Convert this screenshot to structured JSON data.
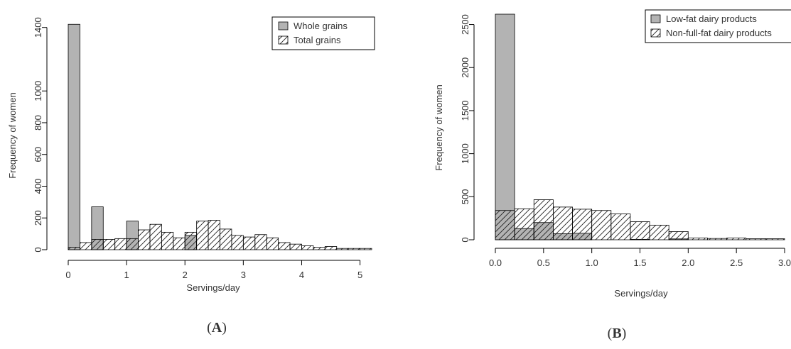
{
  "colors": {
    "solid_fill": "#b3b3b3",
    "hatch_stroke": "#222222",
    "axis": "#000000",
    "text": "#333333"
  },
  "chart_data": [
    {
      "id": "A",
      "type": "histogram",
      "panel_label": {
        "open": "(",
        "letter": "A",
        "close": ")"
      },
      "xlabel": "Servings/day",
      "ylabel": "Frequency of women",
      "xlim": [
        0,
        5.2
      ],
      "ylim": [
        0,
        1430
      ],
      "x_ticks": [
        0,
        1,
        2,
        3,
        4,
        5
      ],
      "x_tick_labels": [
        "0",
        "1",
        "2",
        "3",
        "4",
        "5"
      ],
      "y_ticks": [
        0,
        200,
        400,
        600,
        800,
        1000,
        1400
      ],
      "y_tick_labels": [
        "0",
        "200",
        "400",
        "600",
        "800",
        "1000",
        "1400"
      ],
      "legend_position": "top-right",
      "series": [
        {
          "name": "Whole grains",
          "style": "solid-gray",
          "bins": [
            {
              "x0": 0.0,
              "x1": 0.2,
              "value": 1420
            },
            {
              "x0": 0.4,
              "x1": 0.6,
              "value": 270
            },
            {
              "x0": 1.0,
              "x1": 1.2,
              "value": 180
            },
            {
              "x0": 2.0,
              "x1": 2.2,
              "value": 90
            }
          ]
        },
        {
          "name": "Total grains",
          "style": "hatched",
          "bins": [
            {
              "x0": 0.0,
              "x1": 0.2,
              "value": 15
            },
            {
              "x0": 0.2,
              "x1": 0.4,
              "value": 45
            },
            {
              "x0": 0.4,
              "x1": 0.6,
              "value": 65
            },
            {
              "x0": 0.6,
              "x1": 0.8,
              "value": 65
            },
            {
              "x0": 0.8,
              "x1": 1.0,
              "value": 70
            },
            {
              "x0": 1.0,
              "x1": 1.2,
              "value": 70
            },
            {
              "x0": 1.2,
              "x1": 1.4,
              "value": 125
            },
            {
              "x0": 1.4,
              "x1": 1.6,
              "value": 160
            },
            {
              "x0": 1.6,
              "x1": 1.8,
              "value": 110
            },
            {
              "x0": 1.8,
              "x1": 2.0,
              "value": 75
            },
            {
              "x0": 2.0,
              "x1": 2.2,
              "value": 110
            },
            {
              "x0": 2.2,
              "x1": 2.4,
              "value": 180
            },
            {
              "x0": 2.4,
              "x1": 2.6,
              "value": 185
            },
            {
              "x0": 2.6,
              "x1": 2.8,
              "value": 130
            },
            {
              "x0": 2.8,
              "x1": 3.0,
              "value": 90
            },
            {
              "x0": 3.0,
              "x1": 3.2,
              "value": 80
            },
            {
              "x0": 3.2,
              "x1": 3.4,
              "value": 95
            },
            {
              "x0": 3.4,
              "x1": 3.6,
              "value": 75
            },
            {
              "x0": 3.6,
              "x1": 3.8,
              "value": 45
            },
            {
              "x0": 3.8,
              "x1": 4.0,
              "value": 35
            },
            {
              "x0": 4.0,
              "x1": 4.2,
              "value": 25
            },
            {
              "x0": 4.2,
              "x1": 4.4,
              "value": 15
            },
            {
              "x0": 4.4,
              "x1": 4.6,
              "value": 20
            },
            {
              "x0": 4.6,
              "x1": 4.8,
              "value": 8
            },
            {
              "x0": 4.8,
              "x1": 5.0,
              "value": 8
            },
            {
              "x0": 5.0,
              "x1": 5.2,
              "value": 8
            }
          ]
        }
      ]
    },
    {
      "id": "B",
      "type": "histogram",
      "panel_label": {
        "open": "(",
        "letter": "B",
        "close": ")"
      },
      "xlabel": "Servings/day",
      "ylabel": "Frequency of women",
      "xlim": [
        0,
        3.0
      ],
      "ylim": [
        0,
        2620
      ],
      "x_ticks": [
        0.0,
        0.5,
        1.0,
        1.5,
        2.0,
        2.5,
        3.0
      ],
      "x_tick_labels": [
        "0.0",
        "0.5",
        "1.0",
        "1.5",
        "2.0",
        "2.5",
        "3.0"
      ],
      "y_ticks": [
        0,
        500,
        1000,
        1500,
        2000,
        2500
      ],
      "y_tick_labels": [
        "0",
        "500",
        "1000",
        "1500",
        "2000",
        "2500"
      ],
      "legend_position": "top-right",
      "series": [
        {
          "name": "Low-fat dairy products",
          "style": "solid-gray",
          "bins": [
            {
              "x0": 0.0,
              "x1": 0.2,
              "value": 2620
            },
            {
              "x0": 0.2,
              "x1": 0.4,
              "value": 130
            },
            {
              "x0": 0.4,
              "x1": 0.6,
              "value": 200
            },
            {
              "x0": 0.6,
              "x1": 0.8,
              "value": 70
            },
            {
              "x0": 0.8,
              "x1": 1.0,
              "value": 75
            },
            {
              "x0": 1.4,
              "x1": 1.6,
              "value": 5
            },
            {
              "x0": 1.8,
              "x1": 2.0,
              "value": 10
            }
          ]
        },
        {
          "name": "Non-full-fat dairy products",
          "style": "hatched",
          "bins": [
            {
              "x0": 0.0,
              "x1": 0.2,
              "value": 340
            },
            {
              "x0": 0.2,
              "x1": 0.4,
              "value": 360
            },
            {
              "x0": 0.4,
              "x1": 0.6,
              "value": 465
            },
            {
              "x0": 0.6,
              "x1": 0.8,
              "value": 380
            },
            {
              "x0": 0.8,
              "x1": 1.0,
              "value": 355
            },
            {
              "x0": 1.0,
              "x1": 1.2,
              "value": 340
            },
            {
              "x0": 1.2,
              "x1": 1.4,
              "value": 300
            },
            {
              "x0": 1.4,
              "x1": 1.6,
              "value": 210
            },
            {
              "x0": 1.6,
              "x1": 1.8,
              "value": 170
            },
            {
              "x0": 1.8,
              "x1": 2.0,
              "value": 95
            },
            {
              "x0": 2.0,
              "x1": 2.2,
              "value": 20
            },
            {
              "x0": 2.2,
              "x1": 2.4,
              "value": 15
            },
            {
              "x0": 2.4,
              "x1": 2.6,
              "value": 20
            },
            {
              "x0": 2.6,
              "x1": 2.8,
              "value": 12
            },
            {
              "x0": 2.8,
              "x1": 3.0,
              "value": 12
            }
          ]
        }
      ]
    }
  ]
}
